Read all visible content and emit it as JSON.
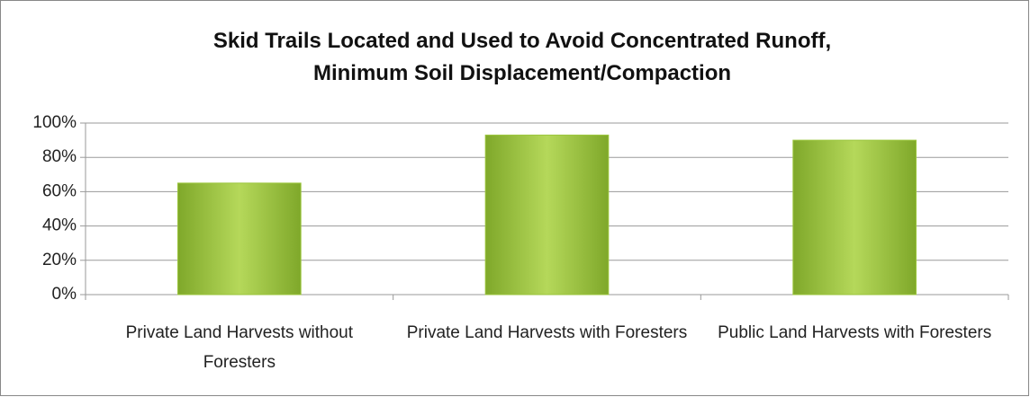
{
  "chart_data": {
    "type": "bar",
    "title": "Skid Trails Located and Used to Avoid Concentrated Runoff, Minimum Soil Displacement/Compaction",
    "categories": [
      "Private Land Harvests without Foresters",
      "Private Land Harvests with Foresters",
      "Public Land Harvests with Foresters"
    ],
    "values": [
      65,
      93,
      90
    ],
    "color": "#9bc63c",
    "ylim": [
      0,
      100
    ],
    "yticks": [
      {
        "value": 0,
        "label": "0%"
      },
      {
        "value": 20,
        "label": "20%"
      },
      {
        "value": 40,
        "label": "40%"
      },
      {
        "value": 60,
        "label": "60%"
      },
      {
        "value": 80,
        "label": "80%"
      },
      {
        "value": 100,
        "label": "100%"
      }
    ],
    "grid": true
  }
}
